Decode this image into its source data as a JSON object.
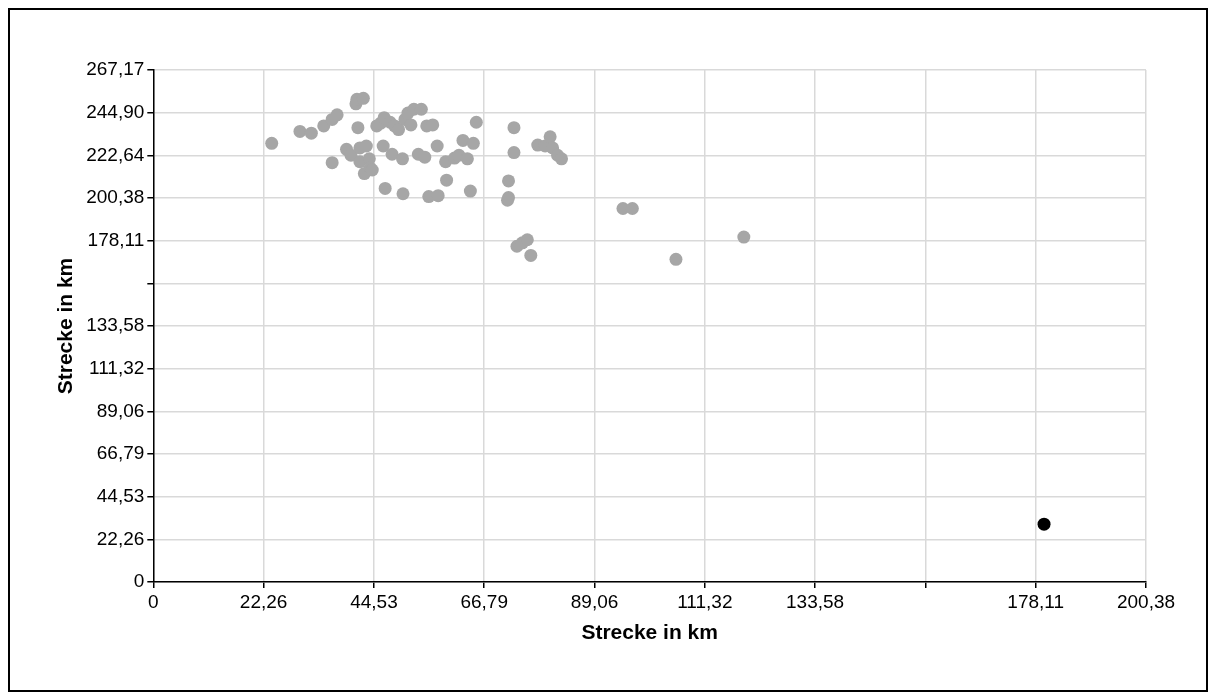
{
  "chart_data": {
    "type": "scatter",
    "xlabel": "Strecke in km",
    "ylabel": "Strecke in km",
    "xlim": [
      0,
      200.38
    ],
    "ylim": [
      0,
      267.17
    ],
    "xticks": [
      0,
      {
        "value": 22.26,
        "label": "22,26"
      },
      {
        "value": 44.53,
        "label": "44,53"
      },
      {
        "value": 66.79,
        "label": "66,79"
      },
      {
        "value": 89.06,
        "label": "89,06"
      },
      {
        "value": 111.32,
        "label": "111,32"
      },
      {
        "value": 133.58,
        "label": "133,58"
      },
      {
        "value": 155.85,
        "label": null
      },
      {
        "value": 178.11,
        "label": "178,11"
      },
      {
        "value": 200.38,
        "label": "200,38"
      }
    ],
    "yticks": [
      0,
      {
        "value": 22.26,
        "label": "22,26"
      },
      {
        "value": 44.53,
        "label": "44,53"
      },
      {
        "value": 66.79,
        "label": "66,79"
      },
      {
        "value": 89.06,
        "label": "89,06"
      },
      {
        "value": 111.32,
        "label": "111,32"
      },
      {
        "value": 133.58,
        "label": "133,58"
      },
      {
        "value": 155.85,
        "label": null
      },
      {
        "value": 178.11,
        "label": "178,11"
      },
      {
        "value": 200.38,
        "label": "200,38"
      },
      {
        "value": 222.64,
        "label": "222,64"
      },
      {
        "value": 244.9,
        "label": "244,90"
      },
      {
        "value": 267.17,
        "label": "267,17"
      }
    ],
    "grid": true,
    "legend": false,
    "marker": "circle",
    "series": [
      {
        "color": "#a6a6a6",
        "x": [
          23.9,
          29.6,
          31.9,
          34.4,
          36.1,
          37.1,
          36.1,
          39.0,
          39.9,
          40.9,
          41.1,
          42.4,
          41.3,
          41.7,
          41.7,
          42.6,
          43.0,
          43.6,
          43.8,
          44.2,
          45.1,
          45.9,
          46.4,
          46.6,
          46.8,
          47.8,
          48.2,
          48.7,
          49.5,
          50.3,
          50.4,
          50.8,
          51.4,
          52.0,
          52.6,
          53.5,
          54.1,
          54.8,
          55.2,
          55.6,
          56.4,
          57.3,
          57.5,
          59.0,
          59.2,
          60.8,
          61.7,
          62.5,
          63.4,
          64.0,
          64.6,
          65.2,
          72.8,
          72.8,
          71.7,
          71.7,
          71.5,
          73.4,
          74.5,
          75.5,
          76.2,
          77.6,
          79.1,
          80.1,
          80.6,
          81.6,
          82.4,
          94.8,
          96.7,
          105.5,
          119.2
        ],
        "values": [
          228.9,
          235.1,
          234.2,
          238.0,
          241.4,
          243.8,
          218.8,
          225.8,
          222.7,
          249.5,
          251.9,
          252.4,
          237.1,
          226.5,
          219.3,
          213.1,
          227.5,
          220.8,
          216.0,
          215.0,
          238.0,
          239.4,
          227.5,
          242.3,
          205.4,
          239.9,
          223.2,
          238.0,
          236.1,
          220.8,
          202.6,
          241.4,
          244.7,
          238.5,
          246.7,
          223.2,
          246.7,
          221.7,
          238.0,
          201.1,
          238.5,
          227.5,
          201.6,
          219.3,
          209.7,
          221.2,
          222.7,
          230.4,
          220.8,
          204.0,
          228.9,
          239.9,
          237.1,
          224.1,
          209.3,
          200.6,
          199.2,
          175.2,
          177.0,
          178.6,
          170.4,
          228.0,
          227.5,
          232.3,
          226.5,
          222.7,
          220.8,
          194.9,
          194.9,
          168.4,
          180.0
        ]
      },
      {
        "color": "#000000",
        "x": [
          179.8
        ],
        "values": [
          30.2
        ]
      }
    ]
  }
}
